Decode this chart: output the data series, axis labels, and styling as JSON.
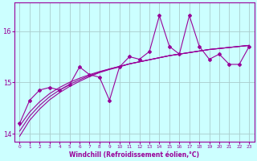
{
  "xlabel": "Windchill (Refroidissement éolien,°C)",
  "x_data": [
    0,
    1,
    2,
    3,
    4,
    5,
    6,
    7,
    8,
    9,
    10,
    11,
    12,
    13,
    14,
    15,
    16,
    17,
    18,
    19,
    20,
    21,
    22,
    23
  ],
  "y_main": [
    14.2,
    14.65,
    14.85,
    14.9,
    14.85,
    14.95,
    15.3,
    15.15,
    15.1,
    14.65,
    15.3,
    15.5,
    15.45,
    15.6,
    16.3,
    15.7,
    15.55,
    16.3,
    15.7,
    15.45,
    15.55,
    15.35,
    15.35,
    15.7
  ],
  "y_line1": [
    14.15,
    14.42,
    14.62,
    14.78,
    14.9,
    15.0,
    15.08,
    15.15,
    15.21,
    15.26,
    15.31,
    15.36,
    15.4,
    15.44,
    15.48,
    15.52,
    15.55,
    15.58,
    15.61,
    15.64,
    15.66,
    15.68,
    15.7,
    15.72
  ],
  "y_line2": [
    14.05,
    14.34,
    14.55,
    14.72,
    14.85,
    14.96,
    15.05,
    15.13,
    15.2,
    15.26,
    15.31,
    15.36,
    15.4,
    15.44,
    15.48,
    15.52,
    15.55,
    15.58,
    15.61,
    15.64,
    15.66,
    15.68,
    15.7,
    15.72
  ],
  "y_line3": [
    13.95,
    14.26,
    14.48,
    14.66,
    14.8,
    14.92,
    15.02,
    15.11,
    15.19,
    15.25,
    15.3,
    15.36,
    15.4,
    15.44,
    15.48,
    15.52,
    15.55,
    15.58,
    15.61,
    15.64,
    15.66,
    15.68,
    15.7,
    15.72
  ],
  "line_color": "#990099",
  "bg_color": "#ccffff",
  "grid_color": "#aacccc",
  "ylim": [
    13.85,
    16.55
  ],
  "yticks": [
    14,
    15,
    16
  ],
  "xlim": [
    -0.5,
    23.5
  ]
}
